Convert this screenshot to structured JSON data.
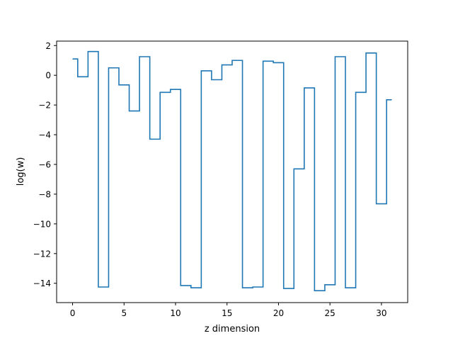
{
  "chart_data": {
    "type": "line",
    "drawstyle": "steps-mid",
    "title": "",
    "xlabel": "z dimension",
    "ylabel": "log(w)",
    "xlim": [
      -1.55,
      32.55
    ],
    "ylim": [
      -15.3,
      2.3
    ],
    "xticks": [
      0,
      5,
      10,
      15,
      20,
      25,
      30
    ],
    "yticks": [
      2,
      0,
      -2,
      -4,
      -6,
      -8,
      -10,
      -12,
      -14
    ],
    "grid": false,
    "legend": "none",
    "series": [
      {
        "color": "#1f77b4",
        "x": [
          0,
          1,
          2,
          3,
          4,
          5,
          6,
          7,
          8,
          9,
          10,
          11,
          12,
          13,
          14,
          15,
          16,
          17,
          18,
          19,
          20,
          21,
          22,
          23,
          24,
          25,
          26,
          27,
          28,
          29,
          30,
          31
        ],
        "values": [
          1.1,
          -0.1,
          1.6,
          -14.25,
          0.5,
          -0.65,
          -2.4,
          1.25,
          -4.3,
          -1.15,
          -0.95,
          -14.15,
          -14.3,
          0.3,
          -0.3,
          0.7,
          1.0,
          -14.3,
          -14.25,
          0.95,
          0.85,
          -14.35,
          -6.3,
          -0.85,
          -14.5,
          -14.1,
          1.25,
          -14.3,
          -1.15,
          1.5,
          -8.65,
          -1.65
        ]
      }
    ]
  }
}
